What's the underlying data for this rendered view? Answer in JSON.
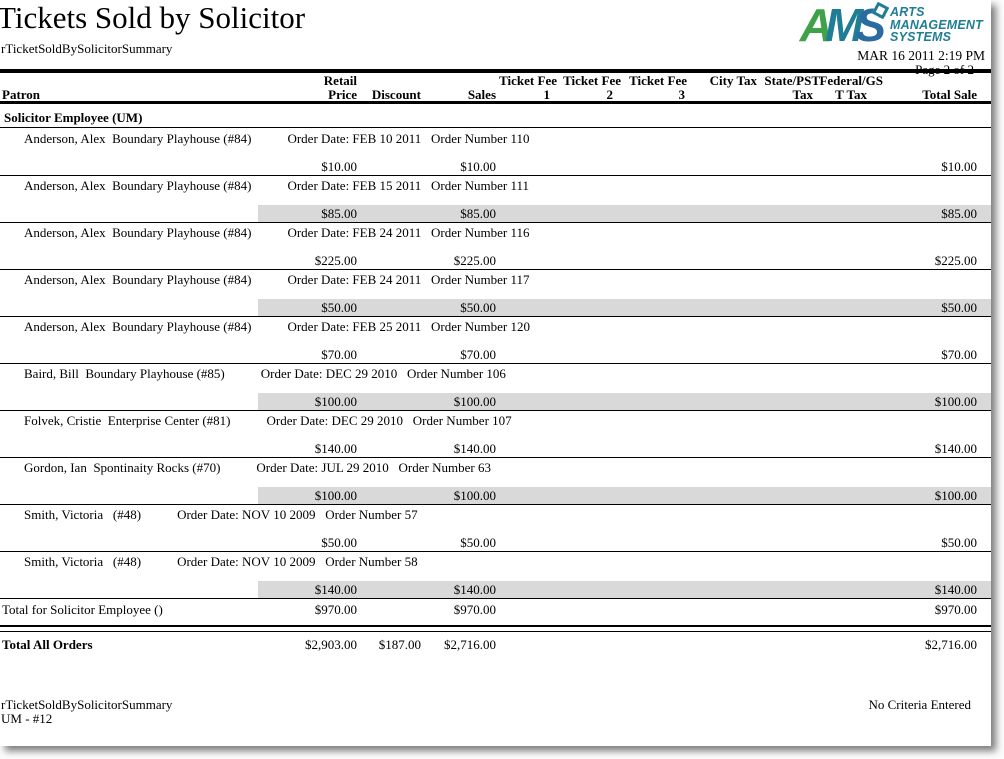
{
  "report": {
    "title": "Tickets Sold by Solicitor",
    "subtitle": "rTicketSoldBySolicitorSummary",
    "generated": "MAR 16 2011 2:19 PM",
    "page_label": "Page 2 of 2"
  },
  "logo": {
    "letters": [
      "A",
      "M",
      "S"
    ],
    "lines": [
      "ARTS",
      "MANAGEMENT",
      "SYSTEMS"
    ],
    "green": "#3fa24b",
    "teal": "#1f7e95",
    "blue": "#2b6ba0"
  },
  "columns": {
    "patron": "Patron",
    "retail": [
      "Retail",
      "Price"
    ],
    "discount": "Discount",
    "sales": "Sales",
    "fee1": [
      "Ticket Fee",
      "1"
    ],
    "fee2": [
      "Ticket Fee",
      "2"
    ],
    "fee3": [
      "Ticket Fee",
      "3"
    ],
    "city_tax": "City Tax",
    "state_tax": [
      "State/PST",
      "Tax"
    ],
    "federal_tax": [
      "Federal/GS",
      "T Tax"
    ],
    "total_sale": "Total Sale"
  },
  "group": {
    "header": "Solicitor Employee (UM)",
    "total_label": "Total for Solicitor Employee ()",
    "total_retail": "$970.00",
    "total_sales": "$970.00",
    "total_sale": "$970.00"
  },
  "rows": [
    {
      "patron": "Anderson, Alex  Boundary Playhouse (#84)",
      "order_info": "Order Date: FEB 10 2011   Order Number 110",
      "retail": "$10.00",
      "sales": "$10.00",
      "total": "$10.00"
    },
    {
      "patron": "Anderson, Alex  Boundary Playhouse (#84)",
      "order_info": "Order Date: FEB 15 2011   Order Number 111",
      "retail": "$85.00",
      "sales": "$85.00",
      "total": "$85.00"
    },
    {
      "patron": "Anderson, Alex  Boundary Playhouse (#84)",
      "order_info": "Order Date: FEB 24 2011   Order Number 116",
      "retail": "$225.00",
      "sales": "$225.00",
      "total": "$225.00"
    },
    {
      "patron": "Anderson, Alex  Boundary Playhouse (#84)",
      "order_info": "Order Date: FEB 24 2011   Order Number 117",
      "retail": "$50.00",
      "sales": "$50.00",
      "total": "$50.00"
    },
    {
      "patron": "Anderson, Alex  Boundary Playhouse (#84)",
      "order_info": "Order Date: FEB 25 2011   Order Number 120",
      "retail": "$70.00",
      "sales": "$70.00",
      "total": "$70.00"
    },
    {
      "patron": "Baird, Bill  Boundary Playhouse (#85)",
      "order_info": "Order Date: DEC 29 2010   Order Number 106",
      "retail": "$100.00",
      "sales": "$100.00",
      "total": "$100.00"
    },
    {
      "patron": "Folvek, Cristie  Enterprise Center (#81)",
      "order_info": "Order Date: DEC 29 2010   Order Number 107",
      "retail": "$140.00",
      "sales": "$140.00",
      "total": "$140.00"
    },
    {
      "patron": "Gordon, Ian  Spontinaity Rocks (#70)",
      "order_info": "Order Date: JUL 29 2010   Order Number 63",
      "retail": "$100.00",
      "sales": "$100.00",
      "total": "$100.00"
    },
    {
      "patron": "Smith, Victoria   (#48)",
      "order_info": "Order Date: NOV 10 2009   Order Number 57",
      "retail": "$50.00",
      "sales": "$50.00",
      "total": "$50.00"
    },
    {
      "patron": "Smith, Victoria   (#48)",
      "order_info": "Order Date: NOV 10 2009   Order Number 58",
      "retail": "$140.00",
      "sales": "$140.00",
      "total": "$140.00"
    }
  ],
  "grand": {
    "label": "Total All Orders",
    "retail": "$2,903.00",
    "discount": "$187.00",
    "sales": "$2,716.00",
    "total": "$2,716.00"
  },
  "footer": {
    "left1": "rTicketSoldBySolicitorSummary",
    "left2": "UM - #12",
    "right": "No Criteria Entered"
  },
  "colors": {
    "row_shade": "#d9d9d9",
    "rule": "#000000"
  }
}
